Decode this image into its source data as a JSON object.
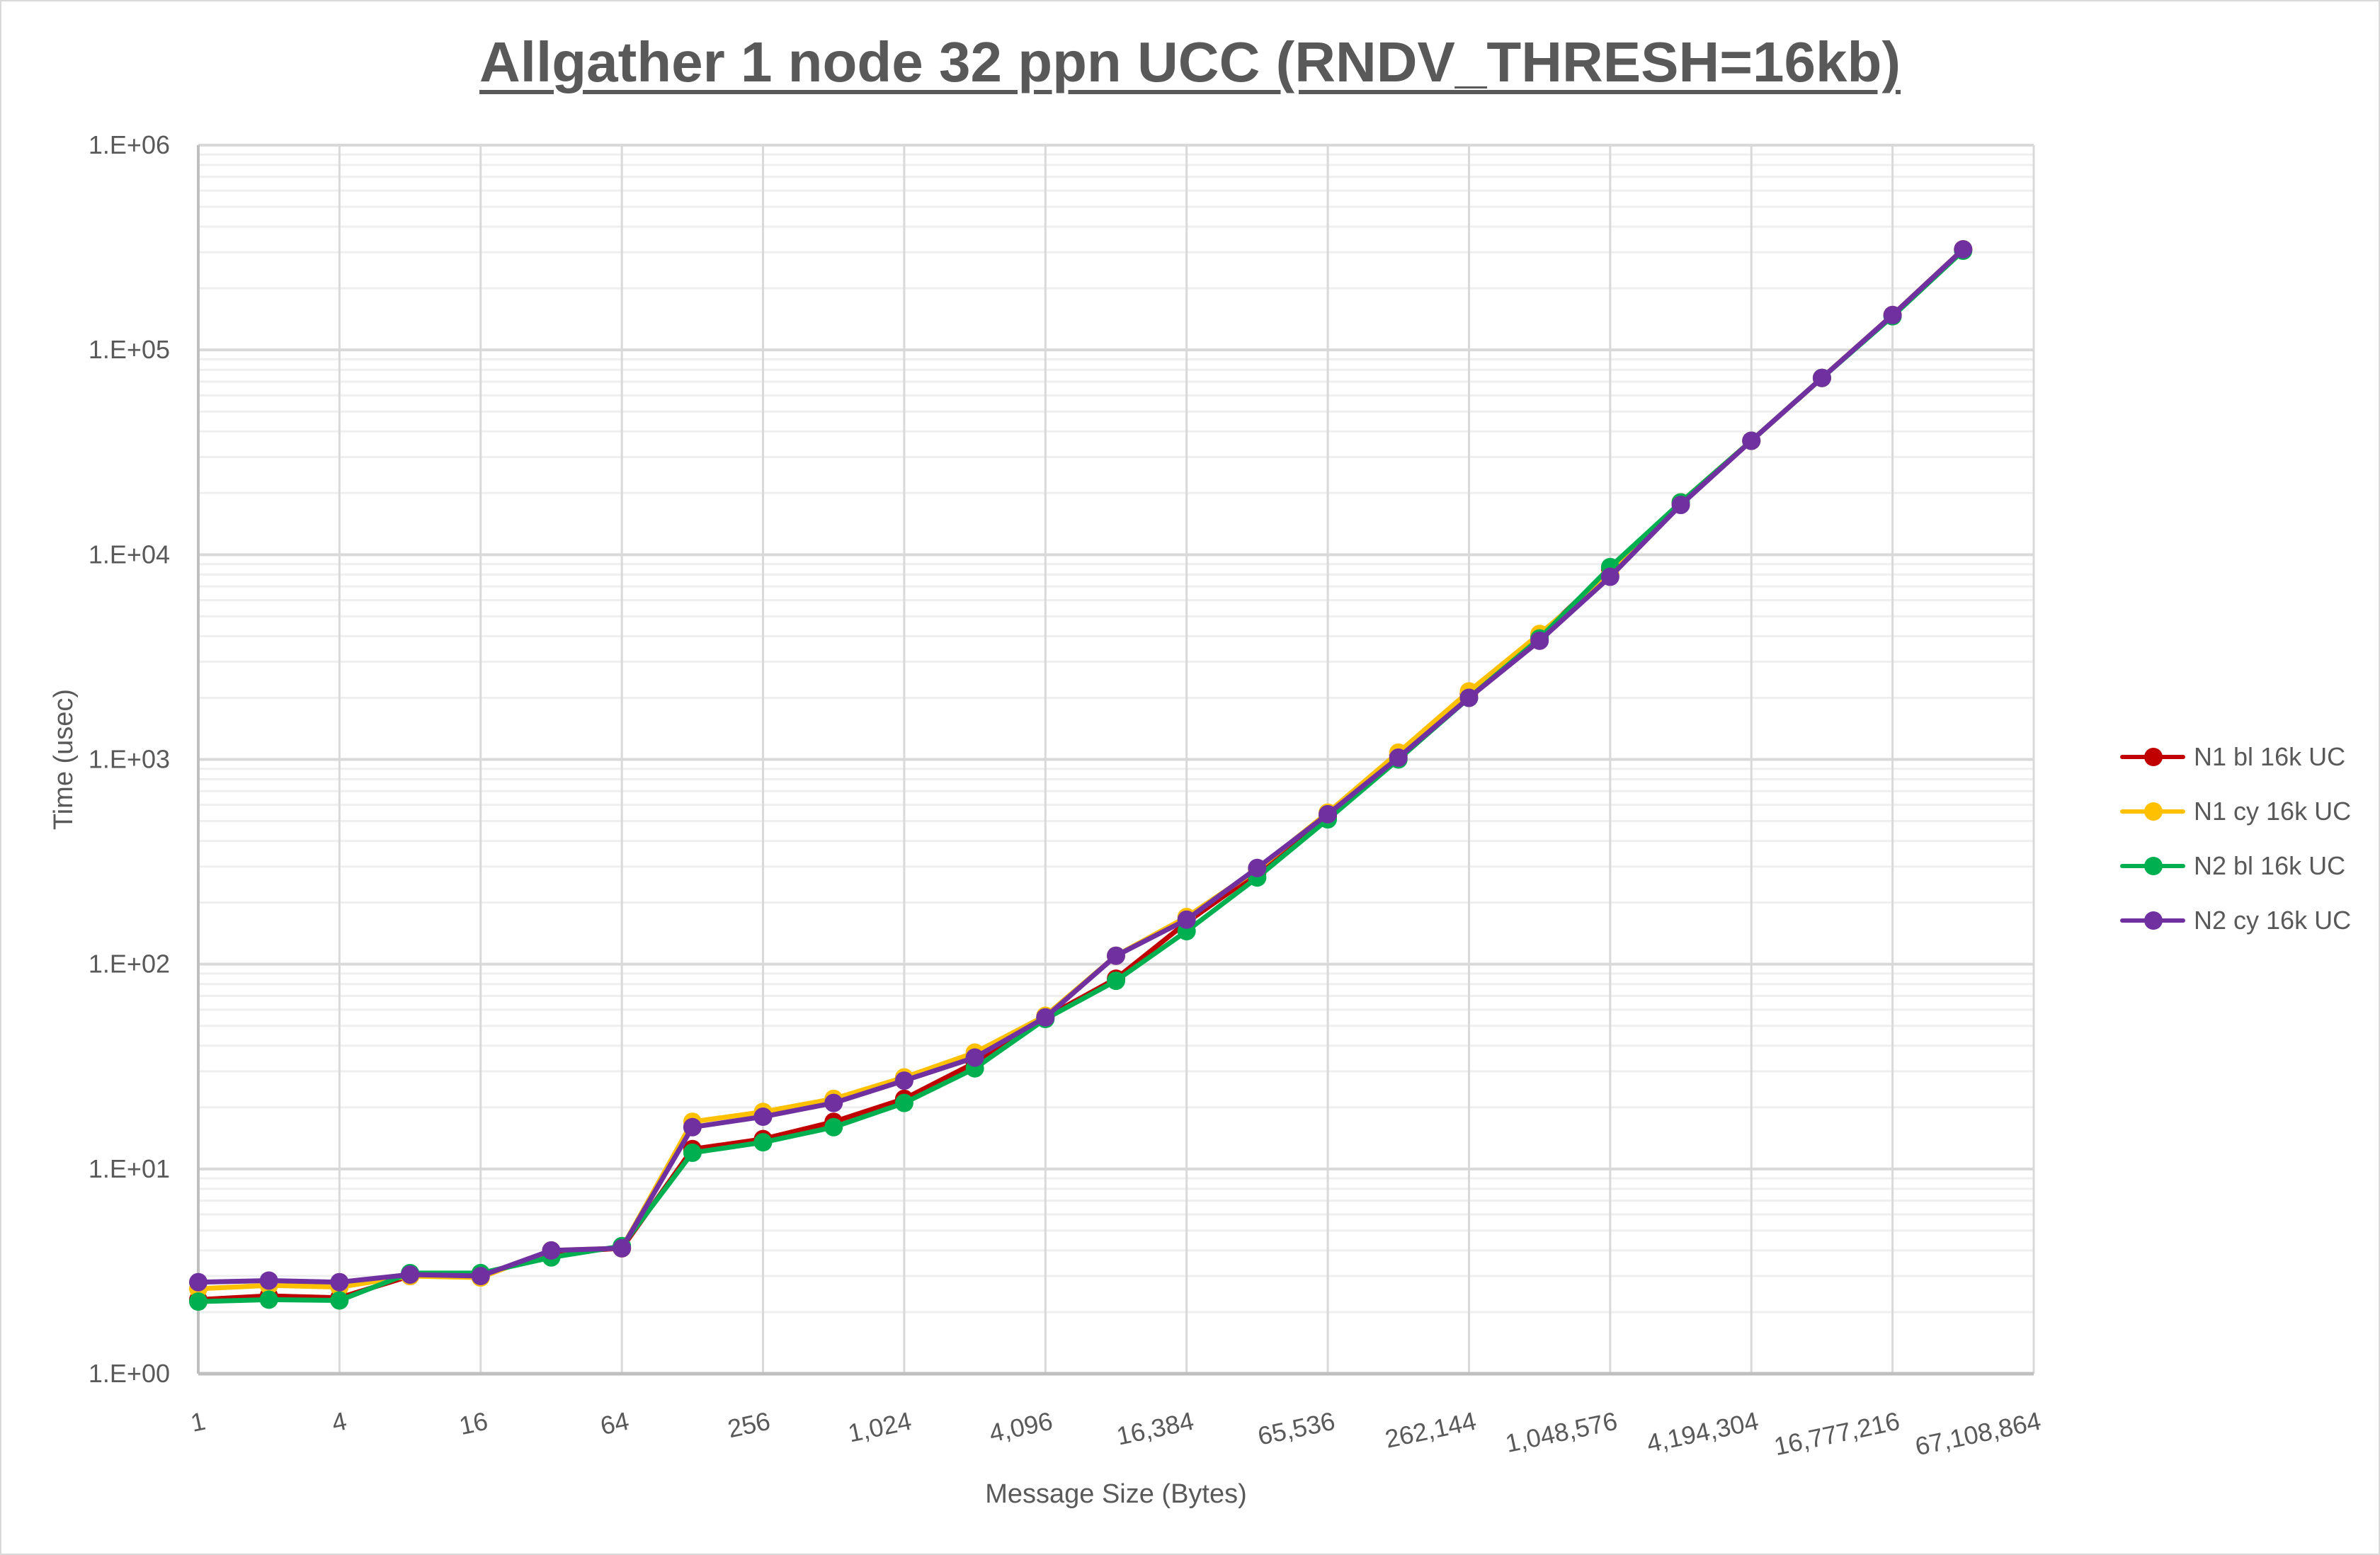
{
  "chart_data": {
    "type": "line",
    "title": "Allgather 1 node 32 ppn UCC (RNDV_THRESH=16kb)",
    "xlabel": "Message Size (Bytes)",
    "ylabel": "Time (usec)",
    "yscale": "log",
    "ylim": [
      1,
      1000000
    ],
    "y_ticks": [
      "1.E+00",
      "1.E+01",
      "1.E+02",
      "1.E+03",
      "1.E+04",
      "1.E+05",
      "1.E+06"
    ],
    "x_tick_labels": [
      "1",
      "4",
      "16",
      "64",
      "256",
      "1,024",
      "4,096",
      "16,384",
      "65,536",
      "262,144",
      "1,048,576",
      "4,194,304",
      "16,777,216",
      "67,108,864"
    ],
    "x": [
      1,
      2,
      4,
      8,
      16,
      32,
      64,
      128,
      256,
      512,
      1024,
      2048,
      4096,
      8192,
      16384,
      32768,
      65536,
      131072,
      262144,
      524288,
      1048576,
      2097152,
      4194304,
      8388608,
      16777216,
      33554432
    ],
    "grid": true,
    "legend_position": "right",
    "series": [
      {
        "name": "N1 bl 16k UC",
        "color": "#c00000",
        "values": [
          2.3,
          2.4,
          2.35,
          3.0,
          3.0,
          3.9,
          4.1,
          12.5,
          14,
          17,
          22,
          33,
          55,
          85,
          160,
          280,
          530,
          1050,
          2100,
          4000,
          8500,
          18000,
          36000,
          73000,
          148000,
          310000
        ]
      },
      {
        "name": "N1 cy 16k UC",
        "color": "#ffc000",
        "values": [
          2.6,
          2.7,
          2.65,
          3.0,
          2.95,
          4.0,
          4.1,
          17,
          19,
          22,
          28,
          37,
          56,
          110,
          170,
          290,
          550,
          1080,
          2150,
          4100,
          8000,
          18000,
          36000,
          73000,
          148000,
          310000
        ]
      },
      {
        "name": "N2 bl 16k UC",
        "color": "#00b050",
        "values": [
          2.25,
          2.3,
          2.28,
          3.1,
          3.1,
          3.7,
          4.2,
          12,
          13.5,
          16,
          21,
          31,
          54,
          83,
          145,
          265,
          510,
          1000,
          2000,
          3900,
          8700,
          18000,
          36000,
          73000,
          146000,
          305000
        ]
      },
      {
        "name": "N2 cy 16k UC",
        "color": "#7030a0",
        "values": [
          2.8,
          2.85,
          2.8,
          3.05,
          3.0,
          4.0,
          4.1,
          16,
          18,
          21,
          27,
          35,
          55,
          110,
          165,
          295,
          540,
          1020,
          2000,
          3800,
          7800,
          17500,
          36000,
          73000,
          148000,
          310000
        ]
      }
    ]
  }
}
